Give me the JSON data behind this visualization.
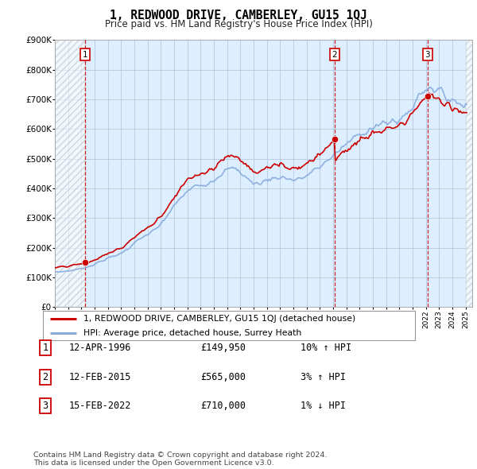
{
  "title": "1, REDWOOD DRIVE, CAMBERLEY, GU15 1QJ",
  "subtitle": "Price paid vs. HM Land Registry's House Price Index (HPI)",
  "ylim": [
    0,
    900000
  ],
  "yticks": [
    0,
    100000,
    200000,
    300000,
    400000,
    500000,
    600000,
    700000,
    800000,
    900000
  ],
  "ytick_labels": [
    "£0",
    "£100K",
    "£200K",
    "£300K",
    "£400K",
    "£500K",
    "£600K",
    "£700K",
    "£800K",
    "£900K"
  ],
  "background_color": "#ffffff",
  "plot_bg_color": "#ddeeff",
  "sale_color": "#cc0000",
  "hpi_color": "#88aadd",
  "purchase_dates": [
    1996.28,
    2015.12,
    2022.12
  ],
  "purchase_prices": [
    149950,
    565000,
    710000
  ],
  "sale_labels": [
    "1",
    "2",
    "3"
  ],
  "sale_info": [
    {
      "num": "1",
      "date": "12-APR-1996",
      "price": "£149,950",
      "hpi": "10% ↑ HPI"
    },
    {
      "num": "2",
      "date": "12-FEB-2015",
      "price": "£565,000",
      "hpi": "3% ↑ HPI"
    },
    {
      "num": "3",
      "date": "15-FEB-2022",
      "price": "£710,000",
      "hpi": "1% ↓ HPI"
    }
  ],
  "legend_sale_label": "1, REDWOOD DRIVE, CAMBERLEY, GU15 1QJ (detached house)",
  "legend_hpi_label": "HPI: Average price, detached house, Surrey Heath",
  "footer": "Contains HM Land Registry data © Crown copyright and database right 2024.\nThis data is licensed under the Open Government Licence v3.0.",
  "xmin": 1994.0,
  "xmax": 2025.5
}
